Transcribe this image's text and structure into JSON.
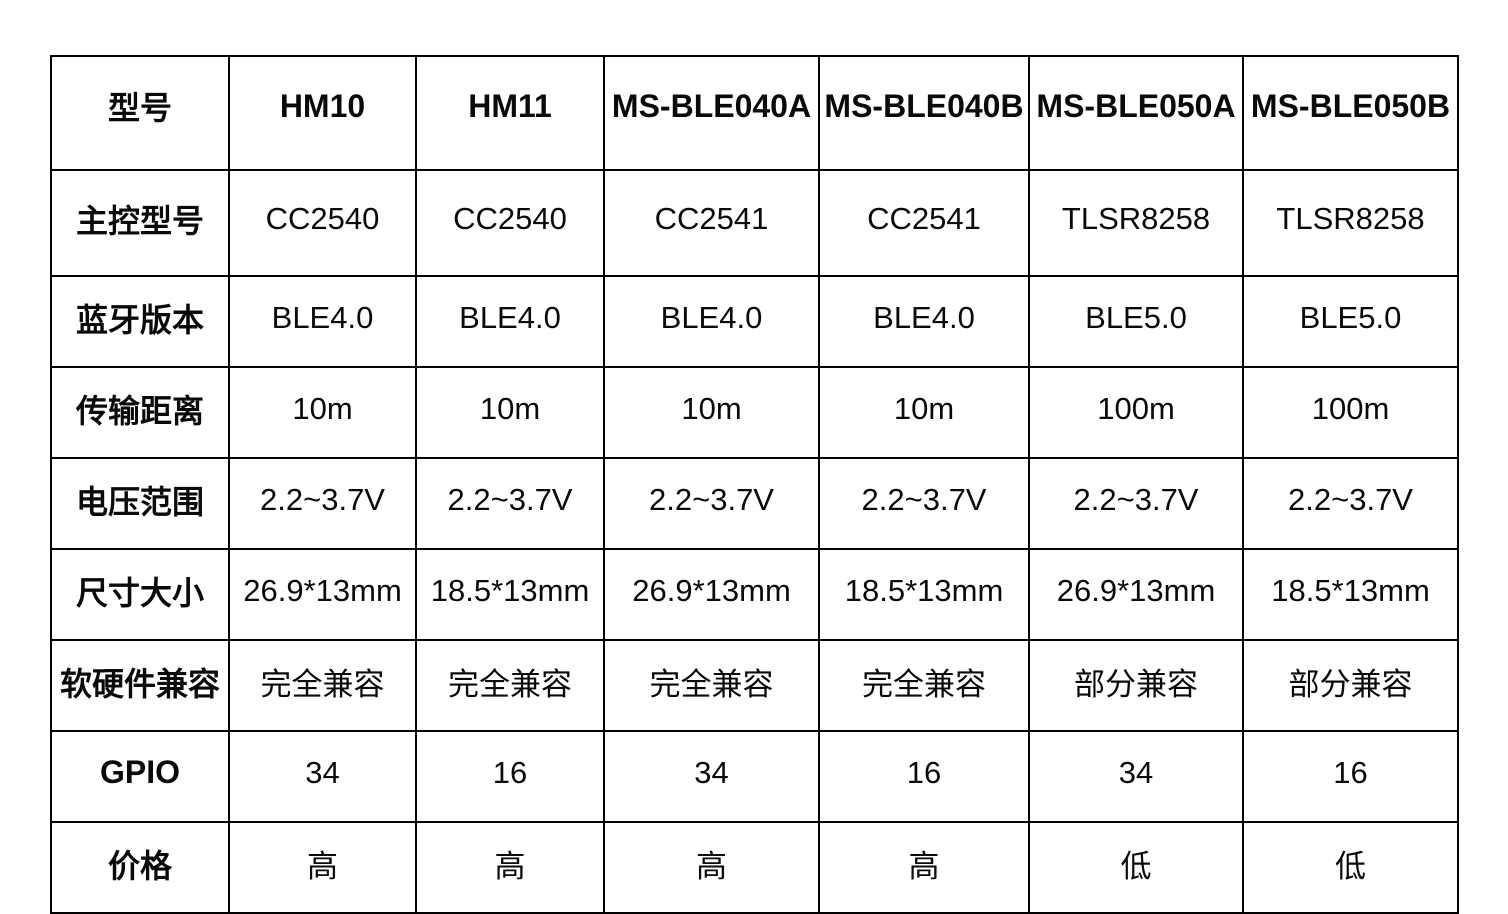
{
  "table": {
    "corner_label": "型号",
    "columns": [
      "HM10",
      "HM11",
      "MS-BLE040A",
      "MS-BLE040B",
      "MS-BLE050A",
      "MS-BLE050B"
    ],
    "rows": [
      {
        "label": "主控型号",
        "values": [
          "CC2540",
          "CC2540",
          "CC2541",
          "CC2541",
          "TLSR8258",
          "TLSR8258"
        ]
      },
      {
        "label": "蓝牙版本",
        "values": [
          "BLE4.0",
          "BLE4.0",
          "BLE4.0",
          "BLE4.0",
          "BLE5.0",
          "BLE5.0"
        ]
      },
      {
        "label": "传输距离",
        "values": [
          "10m",
          "10m",
          "10m",
          "10m",
          "100m",
          "100m"
        ]
      },
      {
        "label": "电压范围",
        "values": [
          "2.2~3.7V",
          "2.2~3.7V",
          "2.2~3.7V",
          "2.2~3.7V",
          "2.2~3.7V",
          "2.2~3.7V"
        ]
      },
      {
        "label": "尺寸大小",
        "values": [
          "26.9*13mm",
          "18.5*13mm",
          "26.9*13mm",
          "18.5*13mm",
          "26.9*13mm",
          "18.5*13mm"
        ]
      },
      {
        "label": "软硬件兼容",
        "values": [
          "完全兼容",
          "完全兼容",
          "完全兼容",
          "完全兼容",
          "部分兼容",
          "部分兼容"
        ]
      },
      {
        "label": "GPIO",
        "values": [
          "34",
          "16",
          "34",
          "16",
          "34",
          "16"
        ]
      },
      {
        "label": "价格",
        "values": [
          "高",
          "高",
          "高",
          "高",
          "低",
          "低"
        ]
      }
    ],
    "colors": {
      "border": "#000000",
      "text": "#0a0a0a",
      "background": "#ffffff"
    }
  }
}
